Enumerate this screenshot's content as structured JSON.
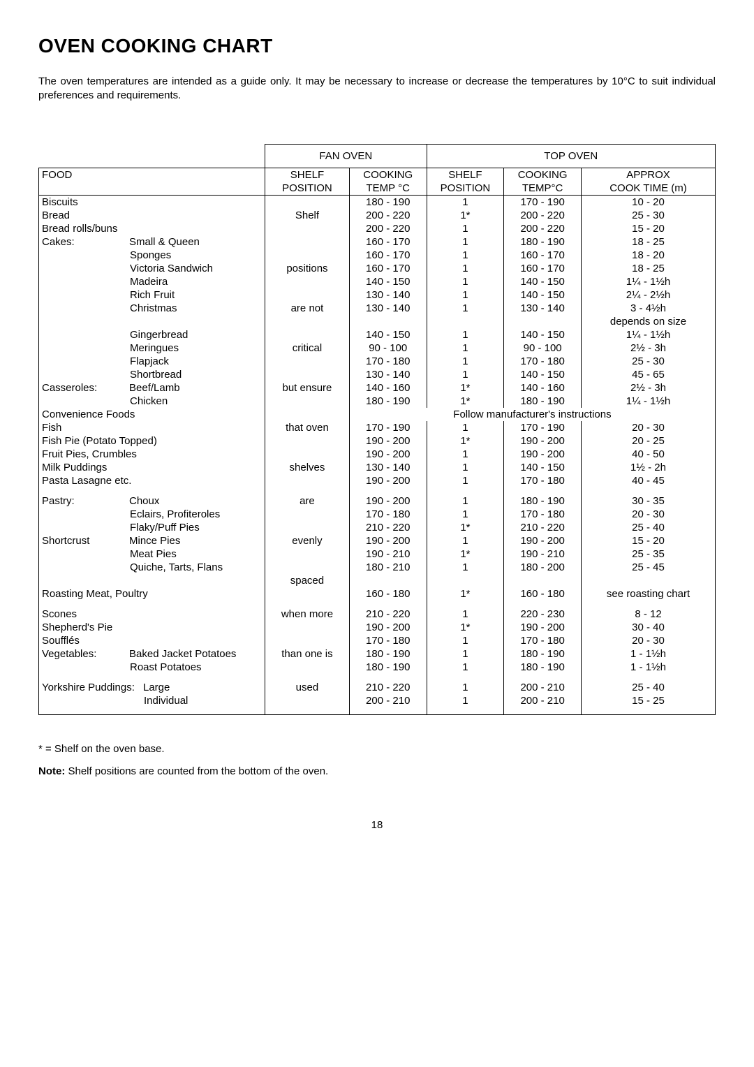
{
  "title": "OVEN COOKING CHART",
  "intro": "The oven temperatures are intended as a guide only. It may be necessary to increase or decrease the temperatures by 10°C to suit individual preferences and requirements.",
  "headers": {
    "fan_oven": "FAN OVEN",
    "top_oven": "TOP OVEN",
    "food": "FOOD",
    "shelf_position": "SHELF POSITION",
    "cooking_temp_c": "COOKING TEMP °C",
    "cooking_tempc": "COOKING TEMP°C",
    "approx_cook_time": "APPROX COOK TIME (m)"
  },
  "fan_shelf_words": [
    "Shelf",
    "positions",
    "are not",
    "critical",
    "but ensure",
    "that oven",
    "shelves",
    "are",
    "evenly",
    "spaced",
    "when more",
    "than one is",
    "used"
  ],
  "rows": [
    {
      "food": "Biscuits",
      "fan_temp": "180 - 190",
      "top_shelf": "1",
      "top_temp": "170 - 190",
      "top_time": "10 - 20"
    },
    {
      "food": "Bread",
      "fan_temp": "200 - 220",
      "top_shelf": "1*",
      "top_temp": "200 - 220",
      "top_time": "25 - 30"
    },
    {
      "food": "Bread rolls/buns",
      "fan_temp": "200 - 220",
      "top_shelf": "1",
      "top_temp": "200 - 220",
      "top_time": "15 - 20"
    },
    {
      "food": "Cakes:",
      "sub": "Small & Queen",
      "fan_temp": "160 - 170",
      "top_shelf": "1",
      "top_temp": "180 - 190",
      "top_time": "18 - 25"
    },
    {
      "sub": "Sponges",
      "fan_temp": "160 - 170",
      "top_shelf": "1",
      "top_temp": "160 - 170",
      "top_time": "18 - 20"
    },
    {
      "sub": "Victoria Sandwich",
      "fan_temp": "160 - 170",
      "top_shelf": "1",
      "top_temp": "160 - 170",
      "top_time": "18 - 25"
    },
    {
      "sub": "Madeira",
      "fan_temp": "140 - 150",
      "top_shelf": "1",
      "top_temp": "140 - 150",
      "top_time": "1¼ - 1½h"
    },
    {
      "sub": "Rich Fruit",
      "fan_temp": "130 - 140",
      "top_shelf": "1",
      "top_temp": "140 - 150",
      "top_time": "2¼ - 2½h"
    },
    {
      "sub": "Christmas",
      "fan_temp": "130 - 140",
      "top_shelf": "1",
      "top_temp": "130 - 140",
      "top_time": "3 - 4½h",
      "extra_time": "depends on size"
    },
    {
      "sub": "Gingerbread",
      "fan_temp": "140 - 150",
      "top_shelf": "1",
      "top_temp": "140 - 150",
      "top_time": "1¼ - 1½h"
    },
    {
      "sub": "Meringues",
      "fan_temp": "90 - 100",
      "top_shelf": "1",
      "top_temp": "90 - 100",
      "top_time": "2½ - 3h"
    },
    {
      "sub": "Flapjack",
      "fan_temp": "170 - 180",
      "top_shelf": "1",
      "top_temp": "170 - 180",
      "top_time": "25 - 30"
    },
    {
      "sub": "Shortbread",
      "fan_temp": "130 - 140",
      "top_shelf": "1",
      "top_temp": "140 - 150",
      "top_time": "45 - 65"
    },
    {
      "food": "Casseroles:",
      "sub": "Beef/Lamb",
      "fan_temp": "140 - 160",
      "top_shelf": "1*",
      "top_temp": "140 - 160",
      "top_time": "2½ - 3h"
    },
    {
      "sub": "Chicken",
      "fan_temp": "180 - 190",
      "top_shelf": "1*",
      "top_temp": "180 - 190",
      "top_time": "1¼ - 1½h"
    },
    {
      "food": "Convenience Foods",
      "span_note": "Follow manufacturer's instructions"
    },
    {
      "food": "Fish",
      "fan_temp": "170 - 190",
      "top_shelf": "1",
      "top_temp": "170 - 190",
      "top_time": "20 - 30"
    },
    {
      "food": "Fish Pie (Potato Topped)",
      "fan_temp": "190 - 200",
      "top_shelf": "1*",
      "top_temp": "190 - 200",
      "top_time": "20 - 25"
    },
    {
      "food": "Fruit Pies, Crumbles",
      "fan_temp": "190 - 200",
      "top_shelf": "1",
      "top_temp": "190 - 200",
      "top_time": "40 - 50"
    },
    {
      "food": "Milk Puddings",
      "fan_temp": "130 - 140",
      "top_shelf": "1",
      "top_temp": "140 - 150",
      "top_time": "1½ - 2h"
    },
    {
      "food": "Pasta Lasagne etc.",
      "fan_temp": "190 - 200",
      "top_shelf": "1",
      "top_temp": "170 - 180",
      "top_time": "40 - 45"
    },
    {
      "spacer": true
    },
    {
      "food": "Pastry:",
      "sub": "Choux",
      "fan_temp": "190 - 200",
      "top_shelf": "1",
      "top_temp": "180 - 190",
      "top_time": "30 - 35"
    },
    {
      "sub": "Eclairs, Profiteroles",
      "fan_temp": "170 - 180",
      "top_shelf": "1",
      "top_temp": "170 - 180",
      "top_time": "20 - 30"
    },
    {
      "sub": "Flaky/Puff Pies",
      "fan_temp": "210 - 220",
      "top_shelf": "1*",
      "top_temp": "210 - 220",
      "top_time": "25 - 40"
    },
    {
      "food": "Shortcrust",
      "sub": "Mince Pies",
      "fan_temp": "190 - 200",
      "top_shelf": "1",
      "top_temp": "190 - 200",
      "top_time": "15 - 20"
    },
    {
      "sub": "Meat Pies",
      "fan_temp": "190 - 210",
      "top_shelf": "1*",
      "top_temp": "190 - 210",
      "top_time": "25 - 35"
    },
    {
      "sub": "Quiche, Tarts, Flans",
      "fan_temp": "180 - 210",
      "top_shelf": "1",
      "top_temp": "180 - 200",
      "top_time": "25 - 45"
    },
    {
      "spacer": true
    },
    {
      "food": "Roasting Meat, Poultry",
      "fan_temp": "160 - 180",
      "top_shelf": "1*",
      "top_temp": "160 - 180",
      "top_time": "see roasting chart"
    },
    {
      "spacer": true
    },
    {
      "food": "Scones",
      "fan_temp": "210 - 220",
      "top_shelf": "1",
      "top_temp": "220 - 230",
      "top_time": "8 - 12"
    },
    {
      "food": "Shepherd's Pie",
      "fan_temp": "190 - 200",
      "top_shelf": "1*",
      "top_temp": "190 - 200",
      "top_time": "30 - 40"
    },
    {
      "food": "Soufflés",
      "fan_temp": "170 - 180",
      "top_shelf": "1",
      "top_temp": "170 - 180",
      "top_time": "20 - 30"
    },
    {
      "food": "Vegetables:",
      "sub": "Baked Jacket Potatoes",
      "fan_temp": "180 - 190",
      "top_shelf": "1",
      "top_temp": "180 - 190",
      "top_time": "1 - 1½h"
    },
    {
      "sub": "Roast Potatoes",
      "fan_temp": "180 - 190",
      "top_shelf": "1",
      "top_temp": "180 - 190",
      "top_time": "1 - 1½h"
    },
    {
      "spacer": true
    },
    {
      "food": "Yorkshire Puddings:",
      "sub2": "Large",
      "fan_temp": "210 - 220",
      "top_shelf": "1",
      "top_temp": "200 - 210",
      "top_time": "25 - 40"
    },
    {
      "sub2": "Individual",
      "fan_temp": "200 - 210",
      "top_shelf": "1",
      "top_temp": "200 - 210",
      "top_time": "15 - 25"
    },
    {
      "spacer": true
    }
  ],
  "fan_shelf_placement": {
    "1": "Shelf",
    "5": "positions",
    "8": "are not",
    "10": "critical",
    "13": "but ensure",
    "16": "that oven",
    "19": "shelves",
    "22": "are",
    "25": "evenly",
    "28": "spaced",
    "31": "when more",
    "34": "than one is",
    "37": "used"
  },
  "footnote": "* = Shelf on the oven base.",
  "note_label": "Note:",
  "note_text": "  Shelf positions are counted from the bottom of the oven.",
  "pagenum": "18"
}
